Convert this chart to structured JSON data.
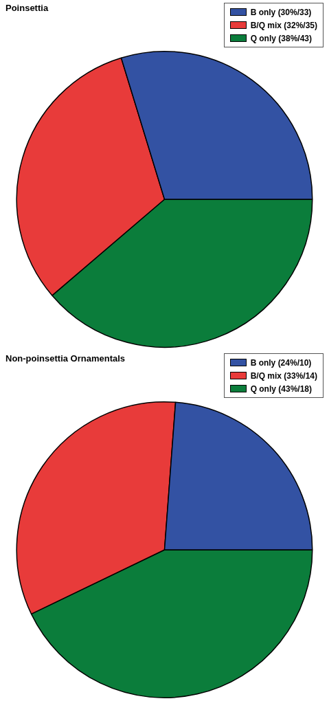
{
  "chart_data": [
    {
      "type": "pie",
      "title": "Poinsettia",
      "categories": [
        "B only (30%/33)",
        "B/Q mix (32%/35)",
        "Q only (38%/43)"
      ],
      "values": [
        33,
        35,
        43
      ],
      "colors": [
        "#3352a3",
        "#e83b3a",
        "#0b7d3b"
      ],
      "legend": "top right"
    },
    {
      "type": "pie",
      "title": "Non-poinsettia Ornamentals",
      "categories": [
        "B only (24%/10)",
        "B/Q mix (33%/14)",
        "Q only (43%/18)"
      ],
      "values": [
        10,
        14,
        18
      ],
      "colors": [
        "#3352a3",
        "#e83b3a",
        "#0b7d3b"
      ],
      "legend": "top right"
    }
  ]
}
